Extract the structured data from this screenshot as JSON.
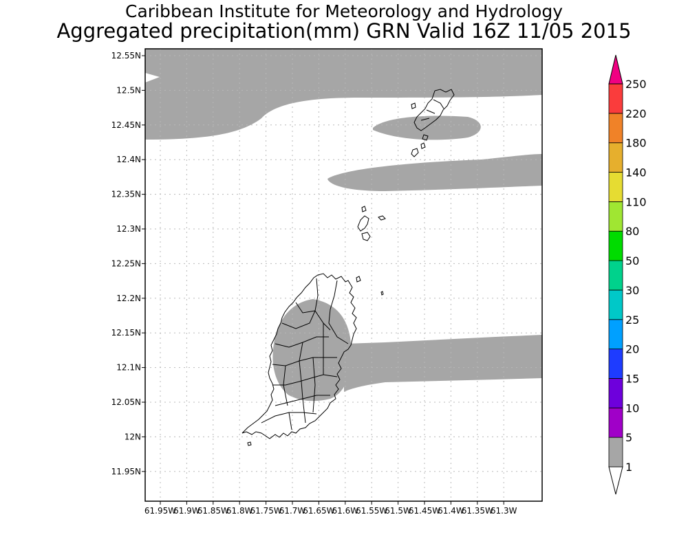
{
  "title_line1": "Caribbean Institute for Meteorology and Hydrology",
  "title_line2": "Aggregated precipitation(mm) GRN Valid 16Z 11/05 2015",
  "map": {
    "lat_ticks": [
      "12.55N",
      "12.5N",
      "12.45N",
      "12.4N",
      "12.35N",
      "12.3N",
      "12.25N",
      "12.2N",
      "12.15N",
      "12.1N",
      "12.05N",
      "12N",
      "11.95N"
    ],
    "lon_ticks": [
      "61.95W",
      "61.9W",
      "61.85W",
      "61.8W",
      "61.75W",
      "61.7W",
      "61.65W",
      "61.6W",
      "61.55W",
      "61.5W",
      "61.45W",
      "61.4W",
      "61.35W",
      "61.3W"
    ],
    "grid": true,
    "land_outline_color": "#000000",
    "precip_shade_color": "#a6a6a6"
  },
  "legend": {
    "levels": [
      {
        "label": "1",
        "color": "#a6a6a6"
      },
      {
        "label": "5",
        "color": "#a000c8"
      },
      {
        "label": "10",
        "color": "#6e00dc"
      },
      {
        "label": "15",
        "color": "#1e3cff"
      },
      {
        "label": "20",
        "color": "#00a0ff"
      },
      {
        "label": "25",
        "color": "#00c8c8"
      },
      {
        "label": "30",
        "color": "#00d28c"
      },
      {
        "label": "50",
        "color": "#00dc00"
      },
      {
        "label": "80",
        "color": "#a0e632"
      },
      {
        "label": "110",
        "color": "#e6dc32"
      },
      {
        "label": "140",
        "color": "#e6af2d"
      },
      {
        "label": "180",
        "color": "#f08228"
      },
      {
        "label": "220",
        "color": "#fa3c3c"
      },
      {
        "label": "250",
        "color": "#f00082"
      }
    ],
    "under_color": "#ffffff"
  }
}
